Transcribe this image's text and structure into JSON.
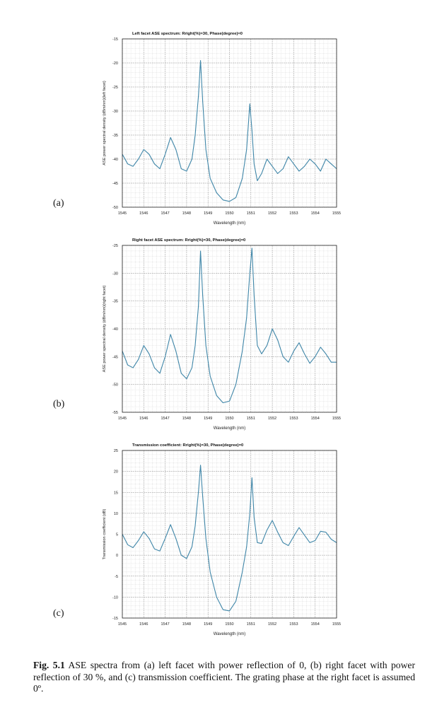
{
  "figure_caption": {
    "label": "Fig. 5.1",
    "text": "ASE spectra from (a) left facet with power reflection of 0, (b) right facet with power reflection of 30 %, and (c) transmission coefficient. The grating phase at the right facet is assumed 0º."
  },
  "chart_data": [
    {
      "type": "line",
      "panel_label": "(a)",
      "title": "Left facet ASE spectrum: Rright(%)=30, Phase(degree)=0",
      "xlabel": "Wavelength (nm)",
      "ylabel": "ASE power spectral density (dBm/nm)(left facet)",
      "xlim": [
        1545,
        1555
      ],
      "ylim": [
        -50,
        -15
      ],
      "xticks": [
        "1545",
        "1546",
        "1547",
        "1548",
        "1549",
        "1550",
        "1551",
        "1552",
        "1553",
        "1554",
        "1555"
      ],
      "yticks": [
        "-50",
        "-45",
        "-40",
        "-35",
        "-30",
        "-25",
        "-20",
        "-15"
      ],
      "grid": true,
      "line_color": "#3f86a8",
      "x": [
        1545.0,
        1545.25,
        1545.5,
        1545.75,
        1546.0,
        1546.25,
        1546.5,
        1546.75,
        1547.0,
        1547.25,
        1547.5,
        1547.75,
        1548.0,
        1548.25,
        1548.4,
        1548.55,
        1548.65,
        1548.75,
        1548.9,
        1549.1,
        1549.4,
        1549.7,
        1550.0,
        1550.3,
        1550.6,
        1550.8,
        1550.95,
        1551.05,
        1551.15,
        1551.3,
        1551.5,
        1551.75,
        1552.0,
        1552.25,
        1552.5,
        1552.75,
        1553.0,
        1553.25,
        1553.5,
        1553.75,
        1554.0,
        1554.25,
        1554.5,
        1554.75,
        1555.0
      ],
      "y": [
        -39,
        -41,
        -41.5,
        -40,
        -38,
        -39,
        -41,
        -42,
        -39,
        -35.5,
        -38,
        -42,
        -42.5,
        -40,
        -35,
        -27,
        -19.5,
        -28,
        -38,
        -44,
        -47,
        -48.5,
        -48.8,
        -48,
        -44,
        -38,
        -28.5,
        -34,
        -41,
        -44.5,
        -43,
        -40,
        -41.5,
        -43,
        -42,
        -39.5,
        -41,
        -42.5,
        -41.5,
        -40,
        -41,
        -42.5,
        -40,
        -41,
        -42
      ]
    },
    {
      "type": "line",
      "panel_label": "(b)",
      "title": "Right facet ASE spectrum: Rright(%)=30, Phase(degree)=0",
      "xlabel": "Wavelength (nm)",
      "ylabel": "ASE power spectral density (dBm/nm)(right facet)",
      "xlim": [
        1545,
        1555
      ],
      "ylim": [
        -55,
        -25
      ],
      "xticks": [
        "1545",
        "1546",
        "1547",
        "1548",
        "1549",
        "1550",
        "1551",
        "1552",
        "1553",
        "1554",
        "1555"
      ],
      "yticks": [
        "-55",
        "-50",
        "-45",
        "-40",
        "-35",
        "-30",
        "-25"
      ],
      "grid": true,
      "line_color": "#3f86a8",
      "x": [
        1545.0,
        1545.25,
        1545.5,
        1545.75,
        1546.0,
        1546.25,
        1546.5,
        1546.75,
        1547.0,
        1547.25,
        1547.5,
        1547.75,
        1548.0,
        1548.25,
        1548.4,
        1548.55,
        1548.65,
        1548.75,
        1548.9,
        1549.1,
        1549.4,
        1549.7,
        1550.0,
        1550.3,
        1550.6,
        1550.8,
        1550.95,
        1551.05,
        1551.15,
        1551.3,
        1551.5,
        1551.75,
        1552.0,
        1552.25,
        1552.5,
        1552.75,
        1553.0,
        1553.25,
        1553.5,
        1553.75,
        1554.0,
        1554.25,
        1554.5,
        1554.75,
        1555.0
      ],
      "y": [
        -44,
        -46.5,
        -47,
        -45.5,
        -43,
        -44.5,
        -47,
        -48,
        -45,
        -41,
        -44,
        -48,
        -49,
        -47,
        -43,
        -36,
        -26,
        -34,
        -43,
        -48.5,
        -52,
        -53.3,
        -53,
        -50,
        -44,
        -38,
        -30,
        -25.5,
        -34,
        -43,
        -44.5,
        -43,
        -40,
        -42,
        -45,
        -46,
        -44,
        -42.5,
        -44.5,
        -46.2,
        -45,
        -43.3,
        -44.5,
        -46,
        -46
      ]
    },
    {
      "type": "line",
      "panel_label": "(c)",
      "title": "Transmission coefficient: Rright(%)=30, Phase(degree)=0",
      "xlabel": "Wavelength (nm)",
      "ylabel": "Transmission coefficient (dB)",
      "xlim": [
        1545,
        1555
      ],
      "ylim": [
        -15,
        25
      ],
      "xticks": [
        "1545",
        "1546",
        "1547",
        "1548",
        "1549",
        "1550",
        "1551",
        "1552",
        "1553",
        "1554",
        "1555"
      ],
      "yticks": [
        "-15",
        "-10",
        "-5",
        "0",
        "5",
        "10",
        "15",
        "20",
        "25"
      ],
      "grid": true,
      "line_color": "#3f86a8",
      "x": [
        1545.0,
        1545.25,
        1545.5,
        1545.75,
        1546.0,
        1546.25,
        1546.5,
        1546.75,
        1547.0,
        1547.25,
        1547.5,
        1547.75,
        1548.0,
        1548.25,
        1548.4,
        1548.55,
        1548.65,
        1548.75,
        1548.9,
        1549.1,
        1549.4,
        1549.7,
        1550.0,
        1550.3,
        1550.6,
        1550.8,
        1550.95,
        1551.05,
        1551.15,
        1551.3,
        1551.5,
        1551.75,
        1552.0,
        1552.25,
        1552.5,
        1552.75,
        1553.0,
        1553.25,
        1553.5,
        1553.75,
        1554.0,
        1554.25,
        1554.5,
        1554.75,
        1555.0
      ],
      "y": [
        5,
        2.5,
        1.8,
        3.5,
        5.6,
        4,
        1.5,
        1,
        4,
        7.3,
        4,
        0,
        -0.8,
        2,
        7,
        15,
        21.5,
        14,
        4,
        -4,
        -10,
        -13,
        -13.3,
        -11,
        -4,
        2,
        10,
        18.5,
        9,
        3,
        2.8,
        6,
        8.3,
        5.5,
        3,
        2.3,
        4.5,
        6.6,
        4.8,
        3,
        3.5,
        5.7,
        5.5,
        3.8,
        3
      ]
    }
  ]
}
